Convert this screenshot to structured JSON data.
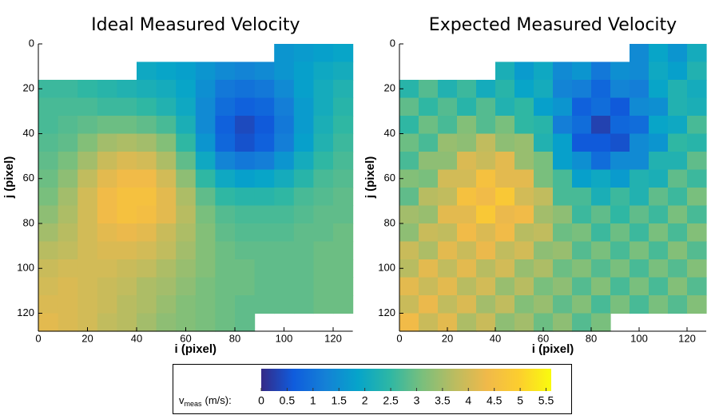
{
  "chart_data": [
    {
      "type": "heatmap",
      "title": "Ideal Measured Velocity",
      "xlabel": "i (pixel)",
      "ylabel": "j (pixel)",
      "xlim": [
        0,
        128
      ],
      "ylim": [
        0,
        128
      ],
      "xticks": [
        0,
        20,
        40,
        60,
        80,
        100,
        120
      ],
      "yticks": [
        0,
        20,
        40,
        60,
        80,
        100,
        120
      ],
      "xbins": [
        0,
        8,
        16,
        24,
        32,
        40,
        48,
        56,
        64,
        72,
        80,
        88,
        96,
        104,
        112,
        120,
        128
      ],
      "ybins": [
        0,
        8,
        16,
        24,
        32,
        40,
        48,
        56,
        64,
        72,
        80,
        88,
        96,
        104,
        112,
        120,
        128
      ],
      "z": [
        [
          null,
          null,
          null,
          null,
          null,
          null,
          null,
          null,
          null,
          null,
          null,
          null,
          1.6,
          1.7,
          1.8,
          1.9
        ],
        [
          null,
          null,
          null,
          null,
          null,
          2.0,
          1.9,
          1.8,
          1.6,
          1.4,
          1.3,
          1.4,
          1.6,
          1.8,
          2.0,
          2.1
        ],
        [
          2.6,
          2.6,
          2.5,
          2.4,
          2.3,
          2.2,
          2.1,
          1.9,
          1.5,
          1.1,
          1.0,
          1.1,
          1.4,
          1.8,
          2.1,
          2.3
        ],
        [
          2.7,
          2.7,
          2.7,
          2.6,
          2.6,
          2.5,
          2.3,
          2.0,
          1.4,
          0.9,
          0.7,
          0.8,
          1.2,
          1.7,
          2.1,
          2.4
        ],
        [
          2.7,
          2.8,
          2.9,
          3.0,
          3.0,
          2.9,
          2.7,
          2.2,
          1.4,
          0.7,
          0.4,
          0.6,
          1.1,
          1.7,
          2.2,
          2.5
        ],
        [
          2.8,
          2.9,
          3.2,
          3.5,
          3.6,
          3.5,
          3.2,
          2.5,
          1.6,
          0.8,
          0.5,
          0.7,
          1.2,
          1.8,
          2.3,
          2.6
        ],
        [
          2.9,
          3.1,
          3.5,
          3.9,
          4.1,
          4.0,
          3.6,
          2.9,
          2.0,
          1.3,
          1.1,
          1.2,
          1.6,
          2.1,
          2.5,
          2.7
        ],
        [
          3.0,
          3.3,
          3.8,
          4.2,
          4.4,
          4.4,
          4.0,
          3.3,
          2.5,
          2.0,
          1.8,
          1.9,
          2.1,
          2.4,
          2.7,
          2.8
        ],
        [
          3.1,
          3.5,
          4.0,
          4.4,
          4.6,
          4.6,
          4.2,
          3.6,
          2.9,
          2.5,
          2.4,
          2.4,
          2.5,
          2.7,
          2.8,
          2.9
        ],
        [
          3.3,
          3.6,
          4.0,
          4.4,
          4.6,
          4.5,
          4.2,
          3.7,
          3.1,
          2.8,
          2.7,
          2.7,
          2.7,
          2.8,
          2.9,
          2.9
        ],
        [
          3.5,
          3.7,
          4.0,
          4.2,
          4.3,
          4.2,
          3.9,
          3.6,
          3.2,
          2.9,
          2.8,
          2.8,
          2.8,
          2.9,
          2.9,
          3.0
        ],
        [
          3.7,
          3.8,
          4.0,
          4.1,
          4.1,
          4.0,
          3.8,
          3.5,
          3.2,
          3.0,
          2.9,
          2.9,
          2.9,
          2.9,
          3.0,
          3.0
        ],
        [
          3.9,
          4.0,
          4.0,
          4.0,
          3.9,
          3.8,
          3.6,
          3.4,
          3.2,
          3.0,
          3.0,
          2.9,
          2.9,
          2.9,
          3.0,
          3.0
        ],
        [
          4.0,
          4.1,
          4.0,
          3.9,
          3.8,
          3.6,
          3.5,
          3.3,
          3.1,
          3.0,
          3.0,
          2.9,
          2.9,
          2.9,
          3.0,
          3.0
        ],
        [
          4.1,
          4.1,
          4.0,
          3.9,
          3.7,
          3.6,
          3.4,
          3.2,
          3.1,
          3.0,
          2.9,
          2.9,
          2.9,
          2.9,
          3.0,
          3.0
        ],
        [
          4.2,
          4.1,
          4.0,
          3.8,
          3.7,
          3.5,
          3.3,
          3.2,
          3.1,
          3.0,
          2.9,
          null,
          null,
          null,
          null,
          null
        ]
      ]
    },
    {
      "type": "heatmap",
      "title": "Expected Measured Velocity",
      "xlabel": "i (pixel)",
      "ylabel": "j (pixel)",
      "xlim": [
        0,
        128
      ],
      "ylim": [
        0,
        128
      ],
      "xticks": [
        0,
        20,
        40,
        60,
        80,
        100,
        120
      ],
      "yticks": [
        0,
        20,
        40,
        60,
        80,
        100,
        120
      ],
      "xbins": [
        0,
        8,
        16,
        24,
        32,
        40,
        48,
        56,
        64,
        72,
        80,
        88,
        96,
        104,
        112,
        120,
        128
      ],
      "ybins": [
        0,
        8,
        16,
        24,
        32,
        40,
        48,
        56,
        64,
        72,
        80,
        88,
        96,
        104,
        112,
        120,
        128
      ],
      "z": [
        [
          null,
          null,
          null,
          null,
          null,
          null,
          null,
          null,
          null,
          null,
          null,
          null,
          1.4,
          1.9,
          1.6,
          2.1
        ],
        [
          null,
          null,
          null,
          null,
          null,
          2.2,
          1.7,
          2.0,
          1.4,
          1.6,
          1.1,
          1.5,
          1.4,
          2.0,
          1.8,
          2.3
        ],
        [
          2.4,
          2.8,
          2.3,
          2.6,
          2.1,
          2.4,
          1.9,
          2.1,
          1.3,
          1.2,
          0.8,
          1.3,
          1.2,
          1.9,
          2.3,
          2.1
        ],
        [
          2.9,
          2.5,
          2.8,
          2.4,
          2.8,
          2.3,
          2.5,
          1.8,
          1.6,
          0.7,
          0.9,
          0.6,
          1.4,
          1.5,
          2.3,
          2.2
        ],
        [
          2.5,
          3.0,
          2.7,
          3.2,
          2.8,
          3.1,
          2.5,
          2.4,
          1.2,
          0.9,
          0.3,
          0.8,
          0.9,
          1.9,
          2.0,
          2.7
        ],
        [
          3.0,
          2.7,
          3.4,
          3.3,
          3.8,
          3.3,
          3.4,
          2.3,
          1.8,
          0.6,
          0.6,
          0.5,
          1.4,
          1.6,
          2.5,
          2.4
        ],
        [
          2.7,
          3.3,
          3.3,
          4.1,
          3.9,
          4.2,
          3.4,
          3.1,
          1.8,
          1.5,
          0.9,
          1.4,
          1.4,
          2.3,
          2.3,
          2.9
        ],
        [
          3.2,
          3.1,
          4.0,
          4.0,
          4.6,
          4.2,
          4.2,
          3.1,
          2.7,
          1.8,
          2.0,
          1.7,
          2.3,
          2.2,
          2.9,
          2.6
        ],
        [
          2.9,
          3.7,
          3.8,
          4.6,
          4.4,
          4.8,
          4.0,
          3.8,
          2.7,
          2.7,
          2.2,
          2.6,
          2.3,
          2.9,
          2.6,
          3.1
        ],
        [
          3.5,
          3.4,
          4.2,
          4.2,
          4.8,
          4.3,
          4.4,
          3.5,
          3.3,
          2.6,
          2.9,
          2.5,
          2.9,
          2.6,
          3.1,
          2.7
        ],
        [
          3.3,
          3.9,
          3.8,
          4.4,
          4.1,
          4.4,
          3.7,
          3.8,
          3.0,
          3.1,
          2.6,
          3.0,
          2.6,
          3.1,
          2.7,
          3.2
        ],
        [
          3.9,
          3.6,
          4.2,
          3.9,
          4.3,
          3.8,
          4.0,
          3.3,
          3.4,
          2.8,
          3.1,
          2.7,
          3.1,
          2.7,
          3.2,
          2.8
        ],
        [
          3.7,
          4.2,
          3.8,
          4.2,
          3.7,
          4.0,
          3.4,
          3.6,
          3.0,
          3.2,
          2.8,
          3.1,
          2.7,
          3.1,
          2.8,
          3.2
        ],
        [
          4.2,
          3.9,
          4.2,
          3.7,
          4.0,
          3.4,
          3.7,
          3.1,
          3.3,
          2.8,
          3.2,
          2.7,
          3.1,
          2.7,
          3.2,
          2.8
        ],
        [
          3.9,
          4.3,
          3.8,
          4.1,
          3.5,
          3.8,
          3.2,
          3.4,
          2.9,
          3.2,
          2.7,
          3.1,
          2.7,
          3.1,
          2.8,
          3.2
        ],
        [
          4.4,
          3.9,
          4.2,
          3.6,
          3.9,
          3.3,
          3.5,
          3.0,
          3.3,
          2.8,
          3.1,
          null,
          null,
          null,
          null,
          null
        ]
      ]
    }
  ],
  "colorbar": {
    "label": "v",
    "label_sub": "meas",
    "label_unit": "(m/s):",
    "clim": [
      0,
      5.6
    ],
    "ticks": [
      0,
      0.5,
      1,
      1.5,
      2,
      2.5,
      3,
      3.5,
      4,
      4.5,
      5,
      5.5
    ],
    "colormap": [
      "#352a87",
      "#0f5cdd",
      "#1481d6",
      "#06a4ca",
      "#2eb7a4",
      "#7abf7c",
      "#bbbc60",
      "#f0b94a",
      "#fcce2e",
      "#f9fb0e"
    ]
  }
}
